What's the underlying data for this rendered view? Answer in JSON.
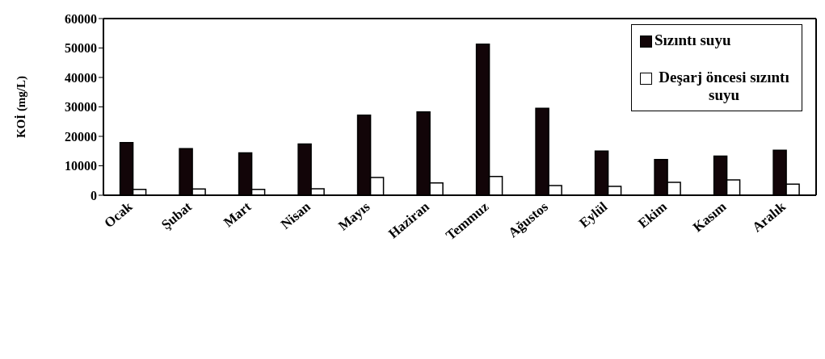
{
  "chart_data": {
    "type": "bar",
    "ylabel": "KOİ (mg/L)",
    "categories": [
      "Ocak",
      "Şubat",
      "Mart",
      "Nisan",
      "Mayıs",
      "Haziran",
      "Temmuz",
      "Ağustos",
      "Eylül",
      "Ekim",
      "Kasım",
      "Aralık"
    ],
    "series": [
      {
        "name": "Sızıntı suyu",
        "color": "#120508",
        "values": [
          17900,
          15800,
          14400,
          17400,
          27200,
          28300,
          51300,
          29500,
          15000,
          12100,
          13300,
          15300
        ]
      },
      {
        "name": "Deşarj öncesi sızıntı suyu",
        "color": "#ffffff",
        "values": [
          2000,
          2100,
          2000,
          2200,
          6000,
          4200,
          6400,
          3300,
          3000,
          4400,
          5200,
          3800
        ]
      }
    ],
    "ylim": [
      0,
      60000
    ],
    "yticks": [
      0,
      10000,
      20000,
      30000,
      40000,
      50000,
      60000
    ],
    "grid": false,
    "legend": "top right"
  }
}
